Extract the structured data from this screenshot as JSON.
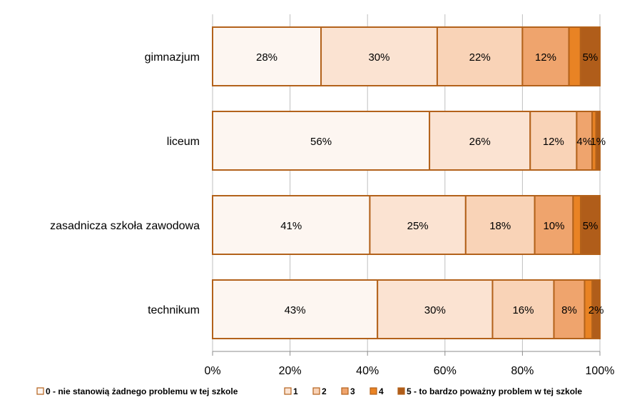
{
  "chart_data": {
    "type": "bar",
    "orientation": "horizontal",
    "stacked": "percent",
    "categories": [
      "gimnazjum",
      "liceum",
      "zasadnicza szkoła zawodowa",
      "technikum"
    ],
    "series": [
      {
        "name": "0 - nie stanowią żadnego problemu w tej szkole",
        "color": "#fdf6f1",
        "values": [
          28,
          56,
          41,
          43
        ]
      },
      {
        "name": "1",
        "color": "#fbe3d2",
        "values": [
          30,
          26,
          25,
          30
        ]
      },
      {
        "name": "2",
        "color": "#f9d3b7",
        "values": [
          22,
          12,
          18,
          16
        ]
      },
      {
        "name": "3",
        "color": "#efa46d",
        "values": [
          12,
          4,
          10,
          8
        ]
      },
      {
        "name": "4",
        "color": "#e98324",
        "values": [
          3,
          1,
          2,
          2
        ]
      },
      {
        "name": "5 - to bardzo poważny problem w tej szkole",
        "color": "#b05d1a",
        "values": [
          5,
          1,
          5,
          2
        ]
      }
    ],
    "data_labels": [
      [
        "28%",
        "30%",
        "22%",
        "12%",
        "",
        "5%"
      ],
      [
        "56%",
        "26%",
        "12%",
        "4%",
        "",
        "1%"
      ],
      [
        "41%",
        "25%",
        "18%",
        "10%",
        "",
        "5%"
      ],
      [
        "43%",
        "30%",
        "16%",
        "8%",
        "",
        "2%"
      ]
    ],
    "xlim": [
      0,
      100
    ],
    "x_ticks": [
      "0%",
      "20%",
      "40%",
      "60%",
      "80%",
      "100%"
    ],
    "border_color": "#b3621b",
    "grid": true,
    "legend_position": "bottom"
  }
}
